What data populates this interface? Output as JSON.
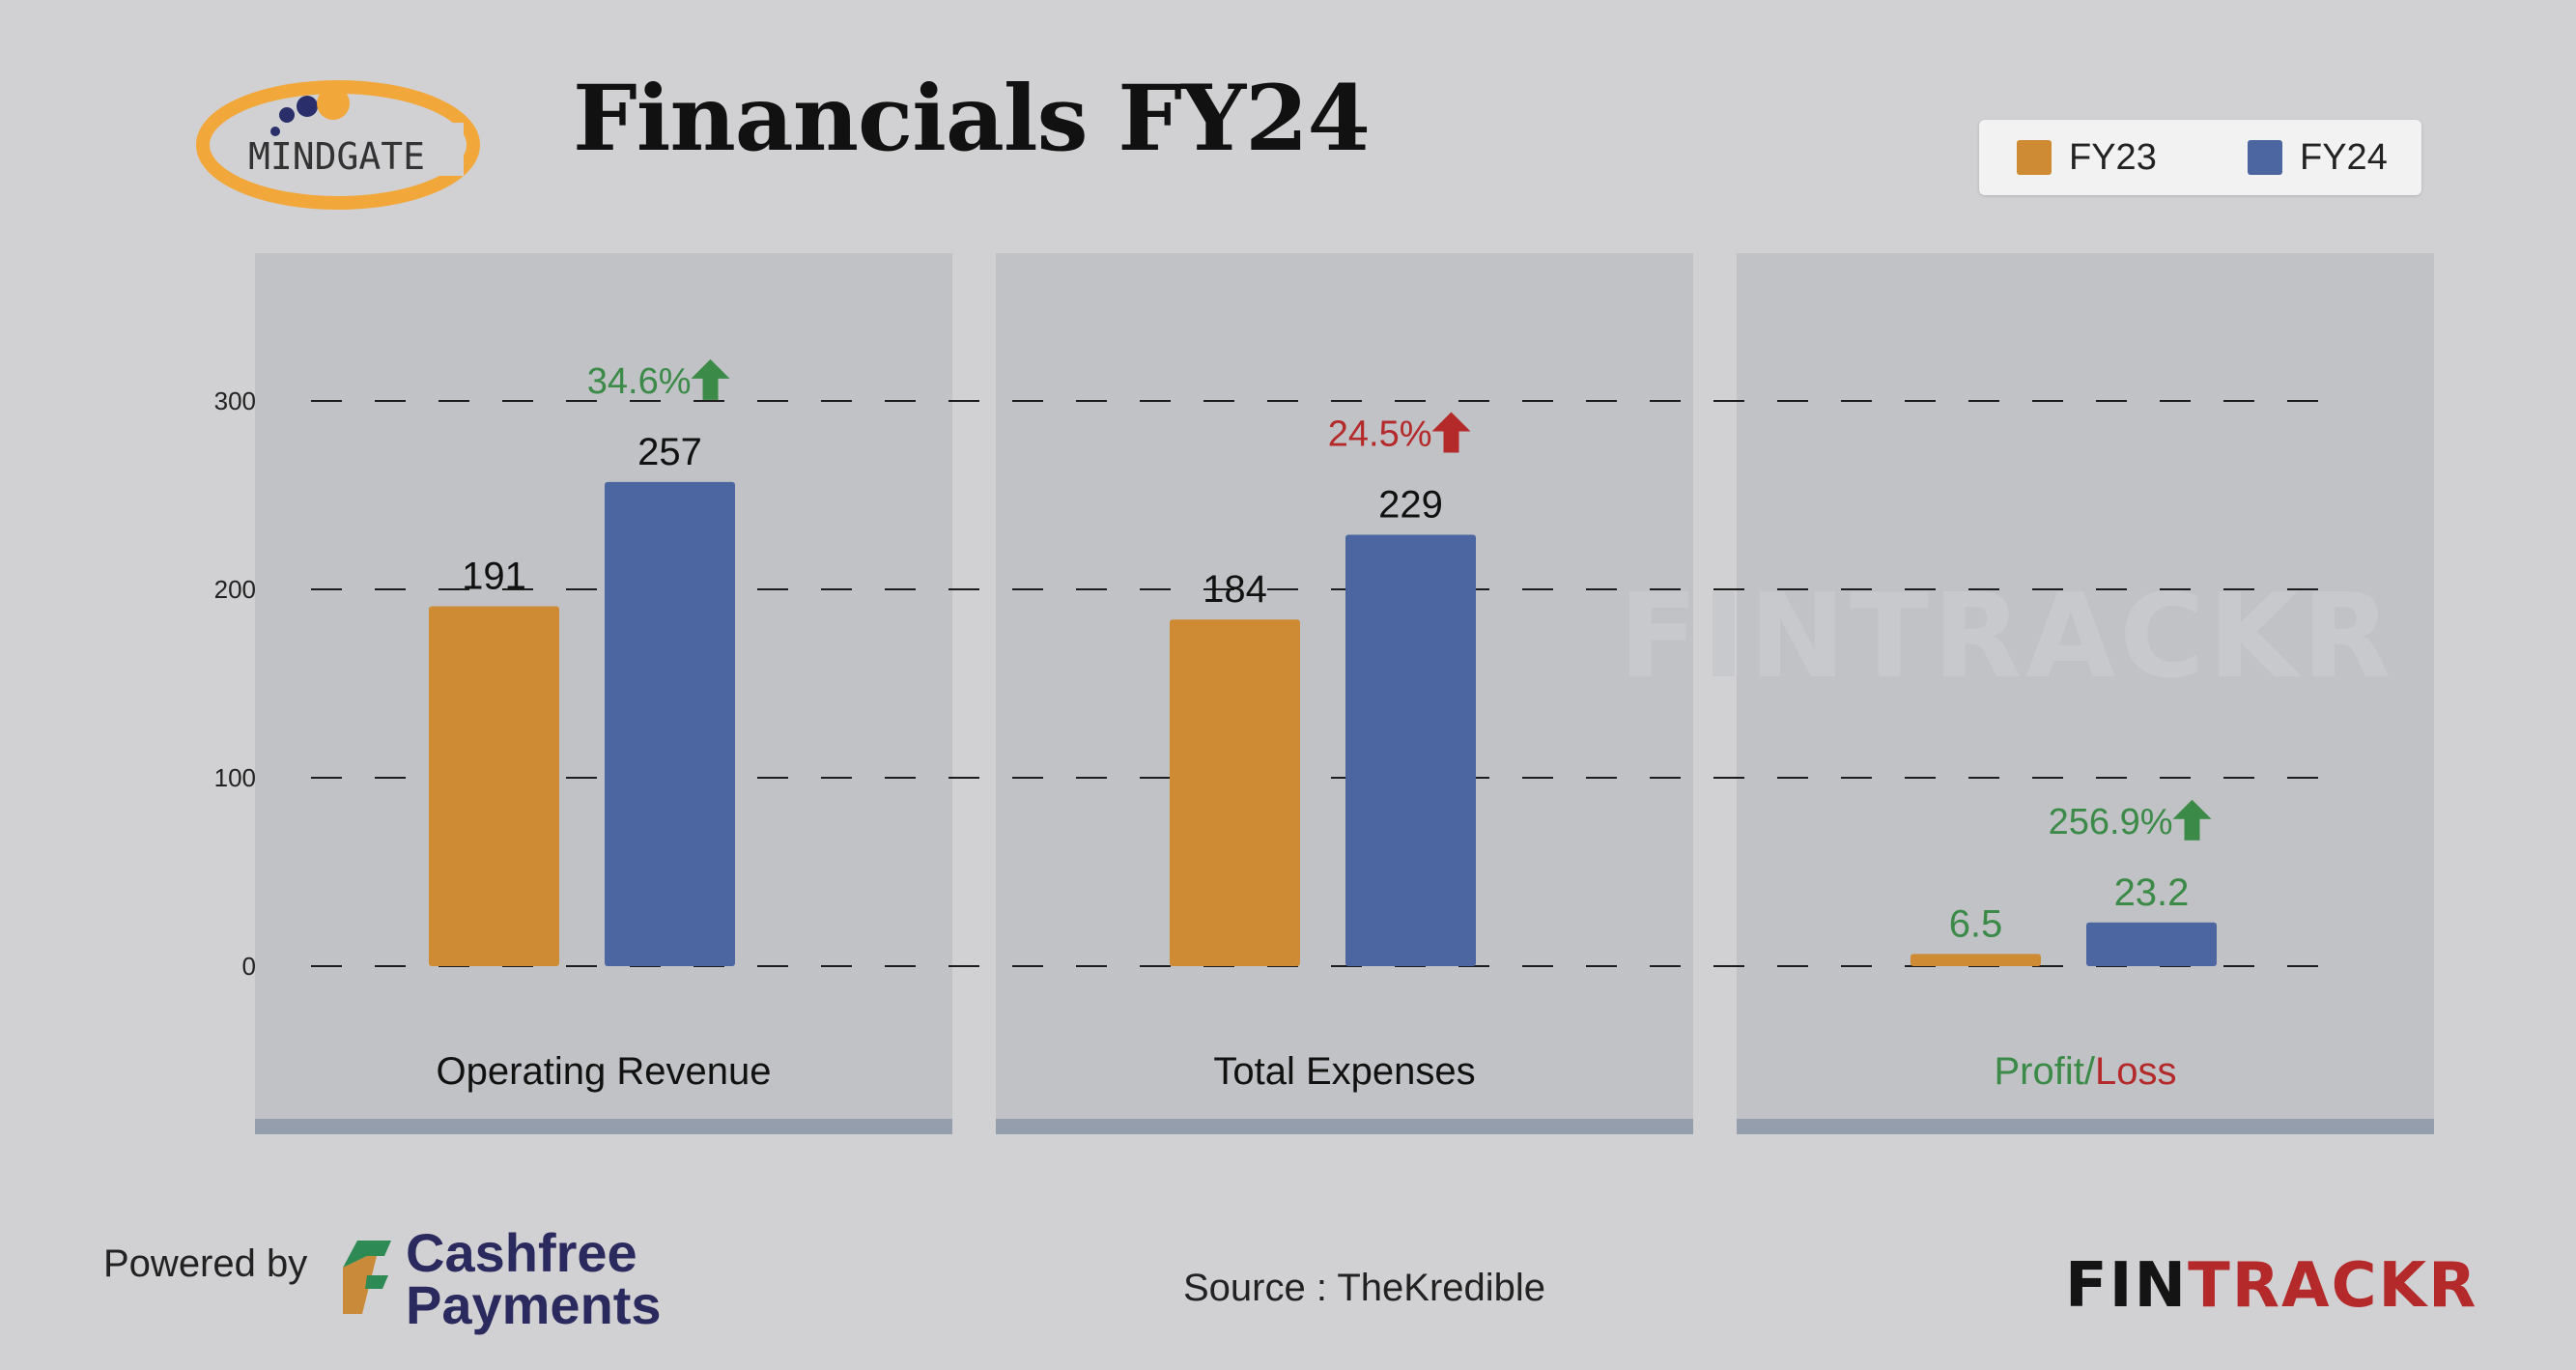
{
  "header": {
    "title": "Financials FY24",
    "logo_text": "MINDGATE"
  },
  "legend": [
    {
      "label": "FY23",
      "color": "#cf8a34"
    },
    {
      "label": "FY24",
      "color": "#4b66a0"
    }
  ],
  "chart_data": {
    "type": "bar",
    "panels": [
      {
        "label": "Operating Revenue",
        "values": [
          191,
          257
        ],
        "value_labels": [
          "191",
          "257"
        ],
        "change": "34.6%",
        "change_direction": "up",
        "change_color": "#3b8a48"
      },
      {
        "label": "Total Expenses",
        "values": [
          184,
          229
        ],
        "value_labels": [
          "184",
          "229"
        ],
        "change": "24.5%",
        "change_direction": "up",
        "change_color": "#b42a2a"
      },
      {
        "label_parts": [
          {
            "text": "Profit",
            "color": "#3b8a48"
          },
          {
            "text": "/",
            "color": "#3b8a48"
          },
          {
            "text": "Loss",
            "color": "#b42a2a"
          }
        ],
        "values": [
          6.5,
          23.2
        ],
        "value_labels": [
          "6.5",
          "23.2"
        ],
        "value_label_color": "#3b8a48",
        "change": "256.9%",
        "change_direction": "up",
        "change_color": "#3b8a48"
      }
    ],
    "series": [
      {
        "name": "FY23",
        "color": "#cf8a34"
      },
      {
        "name": "FY24",
        "color": "#4b66a0"
      }
    ],
    "yticks": [
      0,
      100,
      200,
      300
    ],
    "ylim": [
      -80,
      380
    ],
    "grid": true,
    "legend_position": "top-right",
    "watermark": "FINTRACKR"
  },
  "footer": {
    "powered_by": "Powered by",
    "cashfree_line1": "Cashfree",
    "cashfree_line2": "Payments",
    "source": "Source : TheKredible",
    "brand_part1": "FIN",
    "brand_part2": "TRACKR",
    "brand_color1": "#141414",
    "brand_color2": "#b42a2a"
  }
}
